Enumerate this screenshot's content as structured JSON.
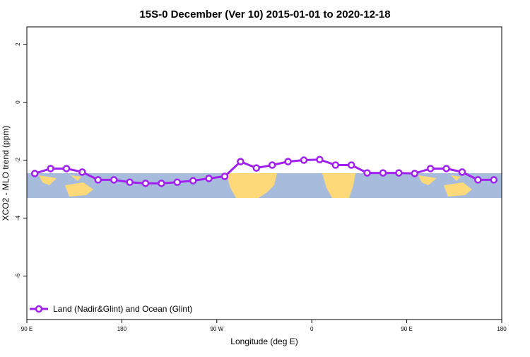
{
  "chart_data": {
    "type": "line",
    "title": "15S-0 December (Ver 10)   2015-01-01 to 2020-12-18",
    "xlabel": "Longitude (deg E)",
    "ylabel": "XCO2 - MLO trend (ppm)",
    "xlim": [
      90,
      540
    ],
    "xticks": [
      {
        "value": 90,
        "label": "90 E"
      },
      {
        "value": 180,
        "label": "180"
      },
      {
        "value": 270,
        "label": "90 W"
      },
      {
        "value": 360,
        "label": "0"
      },
      {
        "value": 450,
        "label": "90 E"
      },
      {
        "value": 540,
        "label": "180"
      }
    ],
    "ylim": [
      -7.5,
      2.6
    ],
    "yticks": [
      2,
      0,
      -2,
      -4,
      -6
    ],
    "legend": "bottom-left",
    "x": [
      97.5,
      112.5,
      127.5,
      142.5,
      157.5,
      172.5,
      187.5,
      202.5,
      217.5,
      232.5,
      247.5,
      262.5,
      277.5,
      292.5,
      307.5,
      322.5,
      337.5,
      352.5,
      367.5,
      382.5,
      397.5,
      412.5,
      427.5,
      442.5,
      457.5,
      472.5,
      487.5,
      502.5,
      517.5,
      532.5
    ],
    "series": [
      {
        "name": "Land (Nadir&Glint) and Ocean (Glint)",
        "color": "#a020f0",
        "values": [
          -2.46,
          -2.29,
          -2.29,
          -2.41,
          -2.68,
          -2.68,
          -2.76,
          -2.8,
          -2.8,
          -2.76,
          -2.71,
          -2.63,
          -2.56,
          -2.05,
          -2.27,
          -2.17,
          -2.05,
          -2.0,
          -1.98,
          -2.17,
          -2.17,
          -2.44,
          -2.44,
          -2.44,
          -2.46,
          -2.29,
          -2.29,
          -2.41,
          -2.68,
          -2.68
        ]
      }
    ]
  }
}
